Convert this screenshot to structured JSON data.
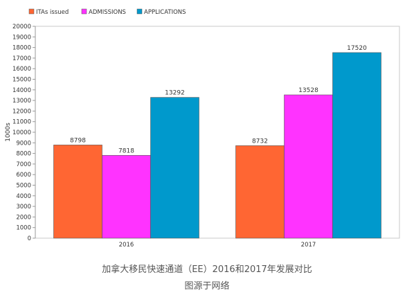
{
  "chart_data": {
    "type": "bar",
    "categories": [
      "2016",
      "2017"
    ],
    "series": [
      {
        "name": "ITAs issued",
        "values": [
          8798,
          8732
        ],
        "color": "#ff6633"
      },
      {
        "name": "ADMISSIONS",
        "values": [
          7818,
          13528
        ],
        "color": "#ff33ff"
      },
      {
        "name": "APPLICATIONS",
        "values": [
          13292,
          17520
        ],
        "color": "#0099cc"
      }
    ],
    "ylabel": "1000s",
    "ylim": [
      0,
      20000
    ],
    "ytick_step": 1000,
    "grid": false,
    "legend": "top-left"
  },
  "caption": {
    "line1": "加拿大移民快速通道（EE）2016和2017年发展对比",
    "line2": "图源于网络"
  }
}
